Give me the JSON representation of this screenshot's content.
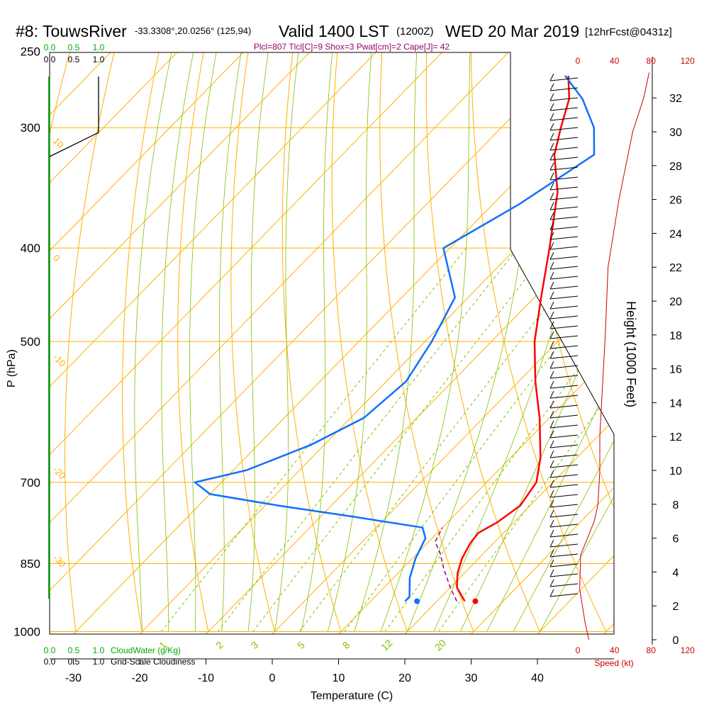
{
  "header": {
    "station": "#8: TouwsRiver",
    "coords": "-33.3308°,20.0256° (125,94)",
    "valid": "Valid 1400 LST",
    "zulu": "(1200Z)",
    "date": "WED 20 Mar 2019",
    "forecast": "[12hrFcst@0431z]",
    "indices": "Plcl=807 Tlcl[C]=9 Shox=3 Pwat[cm]=2 Cape[J]= 42"
  },
  "colors": {
    "isotherm": "#ffb000",
    "mixing": "#80c000",
    "temperature": "#ff0000",
    "dewpoint": "#1070ff",
    "parcel": "#990066",
    "cloud": "#00aa00",
    "speed": "#cc0000"
  },
  "chart_data": {
    "type": "skew-t",
    "xlabel": "Temperature (C)",
    "ylabel": "P (hPa)",
    "right_label": "Height (1000 Feet)",
    "speed_label": "Speed (kt)",
    "x_ticks": [
      "-30",
      "-20",
      "-10",
      "0",
      "10",
      "20",
      "30",
      "40"
    ],
    "x_tick_values": [
      -30,
      -20,
      -10,
      0,
      10,
      20,
      30,
      40
    ],
    "p_ticks": [
      "250",
      "300",
      "400",
      "500",
      "700",
      "850",
      "1000"
    ],
    "p_tick_values": [
      250,
      300,
      400,
      500,
      700,
      850,
      1000
    ],
    "height_ticks": [
      "0",
      "2",
      "4",
      "6",
      "8",
      "10",
      "12",
      "14",
      "16",
      "18",
      "20",
      "22",
      "24",
      "26",
      "28",
      "30",
      "32"
    ],
    "height_values": [
      0,
      2,
      4,
      6,
      8,
      10,
      12,
      14,
      16,
      18,
      20,
      22,
      24,
      26,
      28,
      30,
      32
    ],
    "speed_ticks": [
      "0",
      "40",
      "80",
      "120"
    ],
    "speed_values": [
      0,
      40,
      80,
      120
    ],
    "cloud_ticks": [
      "0.0",
      "0.5",
      "1.0"
    ],
    "cloudwater_label": "CloudWater (g/Kg)",
    "cloudiness_label": "Grid-Scale Cloudiness",
    "isotherm_labels": [
      "0",
      "10",
      "20",
      "30"
    ],
    "isotherm_label_values": [
      0,
      10,
      20,
      30
    ],
    "left_labels": [
      "10",
      "0",
      "-10",
      "-20",
      "-30"
    ],
    "left_label_pressures": [
      310,
      410,
      520,
      680,
      840
    ],
    "mixing_ratio_labels": [
      "1",
      "2",
      "3",
      "5",
      "8",
      "12",
      "20"
    ],
    "mixing_ratio_values": [
      1,
      2,
      3,
      5,
      8,
      12,
      20
    ],
    "temperature_profile": [
      {
        "p": 930,
        "t": 24.2
      },
      {
        "p": 900,
        "t": 21.0
      },
      {
        "p": 870,
        "t": 19.0
      },
      {
        "p": 840,
        "t": 17.5
      },
      {
        "p": 810,
        "t": 16.5
      },
      {
        "p": 790,
        "t": 16.2
      },
      {
        "p": 770,
        "t": 17.5
      },
      {
        "p": 740,
        "t": 18.5
      },
      {
        "p": 700,
        "t": 17.5
      },
      {
        "p": 660,
        "t": 14.5
      },
      {
        "p": 600,
        "t": 8.5
      },
      {
        "p": 550,
        "t": 2.5
      },
      {
        "p": 500,
        "t": -3.5
      },
      {
        "p": 450,
        "t": -9.0
      },
      {
        "p": 400,
        "t": -15.0
      },
      {
        "p": 350,
        "t": -22.0
      },
      {
        "p": 320,
        "t": -28.0
      },
      {
        "p": 300,
        "t": -31.0
      },
      {
        "p": 280,
        "t": -34.0
      },
      {
        "p": 265,
        "t": -37.5
      }
    ],
    "dewpoint_profile": [
      {
        "p": 930,
        "td": 15.2
      },
      {
        "p": 920,
        "td": 15.2
      },
      {
        "p": 880,
        "td": 12.5
      },
      {
        "p": 840,
        "td": 10.5
      },
      {
        "p": 800,
        "td": 9.0
      },
      {
        "p": 780,
        "td": 7.0
      },
      {
        "p": 760,
        "td": -5.0
      },
      {
        "p": 740,
        "td": -18.0
      },
      {
        "p": 720,
        "td": -30.0
      },
      {
        "p": 700,
        "td": -34.0
      },
      {
        "p": 680,
        "td": -28.0
      },
      {
        "p": 640,
        "td": -22.0
      },
      {
        "p": 600,
        "td": -18.0
      },
      {
        "p": 550,
        "td": -17.0
      },
      {
        "p": 500,
        "td": -19.0
      },
      {
        "p": 450,
        "td": -22.0
      },
      {
        "p": 400,
        "td": -31.0
      },
      {
        "p": 360,
        "td": -26.0
      },
      {
        "p": 320,
        "td": -22.0
      },
      {
        "p": 300,
        "td": -26.0
      },
      {
        "p": 280,
        "td": -32.0
      },
      {
        "p": 265,
        "td": -38.0
      }
    ],
    "parcel_profile": [
      {
        "p": 930,
        "t": 23.0
      },
      {
        "p": 900,
        "t": 20.0
      },
      {
        "p": 860,
        "t": 16.2
      },
      {
        "p": 830,
        "t": 13.5
      },
      {
        "p": 807,
        "t": 11.0
      },
      {
        "p": 780,
        "t": 10.0
      }
    ],
    "surface_temperature": 25.8,
    "surface_dewpoint": 17.0,
    "surface_pressure": 930
  }
}
